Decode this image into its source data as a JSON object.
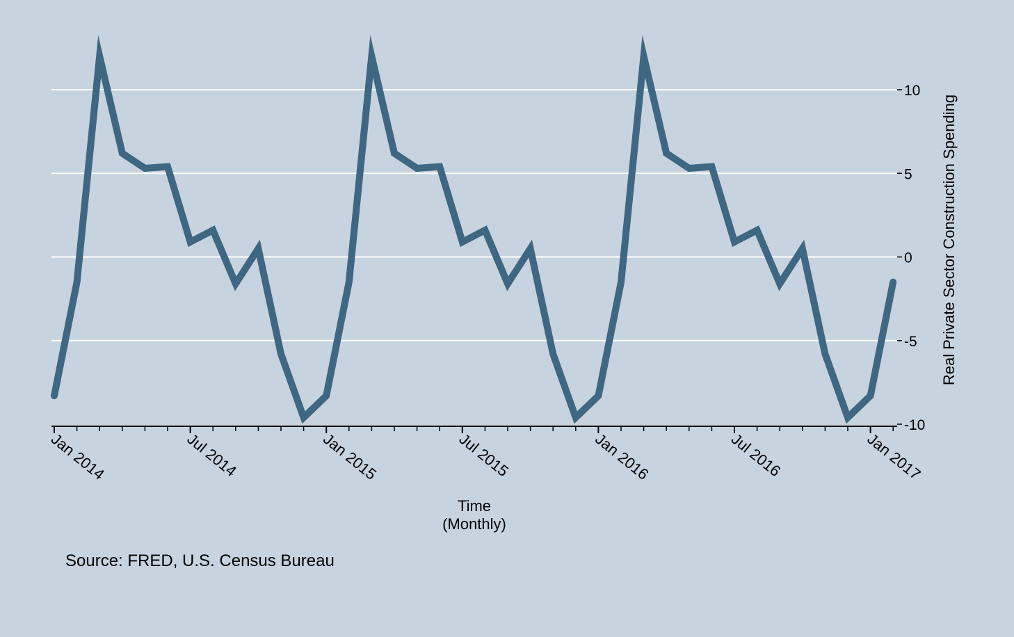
{
  "chart_data": {
    "type": "line",
    "title": "",
    "xlabel": "Time",
    "xlabel_sub": "(Monthly)",
    "ylabel": "Real Private Sector Construction Spending",
    "ylim": [
      -10,
      12.5
    ],
    "y_ticks": [
      10,
      5,
      0,
      -5,
      -10
    ],
    "y_tick_labels": [
      "10",
      "5",
      "0",
      "-5",
      "-10"
    ],
    "x_tick_labels": [
      "Jan 2014",
      "Jul 2014",
      "Jan 2015",
      "Jul 2015",
      "Jan 2016",
      "Jul 2016",
      "Jan 2017"
    ],
    "x_major_tick_months": [
      "2014-01",
      "2014-07",
      "2015-01",
      "2015-07",
      "2016-01",
      "2016-07",
      "2017-01"
    ],
    "grid": true,
    "y_axis_position": "right",
    "note": "Source: FRED, U.S. Census Bureau",
    "colors": {
      "plot_background": "#c7d3df",
      "gridline": "#ffffff",
      "series_line": "#3e6782",
      "axis": "#000000"
    },
    "series": [
      {
        "name": "",
        "x": [
          "2014-01",
          "2014-02",
          "2014-03",
          "2014-04",
          "2014-05",
          "2014-06",
          "2014-07",
          "2014-08",
          "2014-09",
          "2014-10",
          "2014-11",
          "2014-12",
          "2015-01",
          "2015-02",
          "2015-03",
          "2015-04",
          "2015-05",
          "2015-06",
          "2015-07",
          "2015-08",
          "2015-09",
          "2015-10",
          "2015-11",
          "2015-12",
          "2016-01",
          "2016-02",
          "2016-03",
          "2016-04",
          "2016-05",
          "2016-06",
          "2016-07",
          "2016-08",
          "2016-09",
          "2016-10",
          "2016-11",
          "2016-12",
          "2017-01",
          "2017-02"
        ],
        "values": [
          -8.3,
          -1.5,
          12.0,
          6.2,
          5.3,
          5.4,
          0.9,
          1.6,
          -1.6,
          0.5,
          -5.8,
          -9.6,
          -8.3,
          -1.5,
          12.0,
          6.2,
          5.3,
          5.4,
          0.9,
          1.6,
          -1.6,
          0.5,
          -5.8,
          -9.6,
          -8.3,
          -1.5,
          12.0,
          6.2,
          5.3,
          5.4,
          0.9,
          1.6,
          -1.6,
          0.5,
          -5.8,
          -9.6,
          -8.3,
          -1.5
        ]
      }
    ]
  }
}
